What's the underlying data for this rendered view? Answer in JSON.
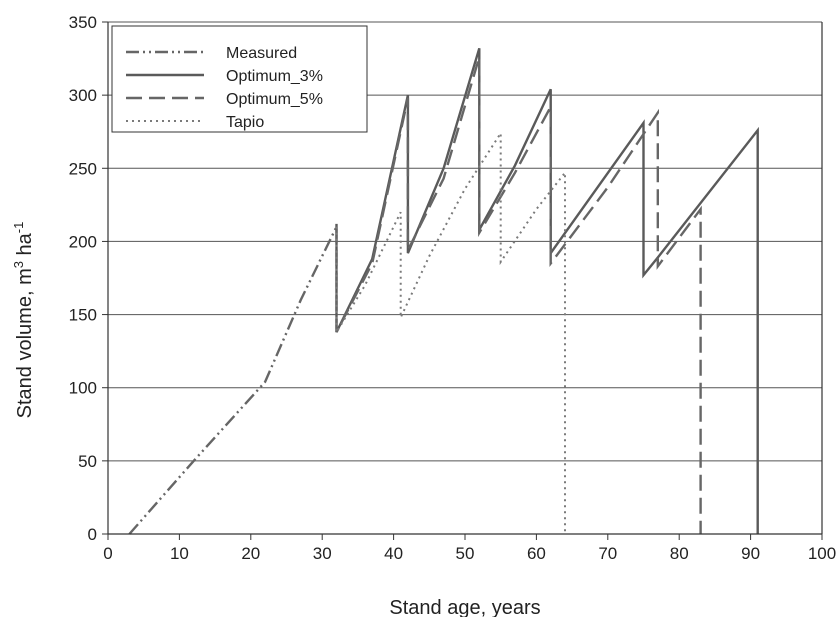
{
  "chart_data": {
    "type": "line",
    "title": "",
    "xlabel": "Stand age, years",
    "ylabel": {
      "prefix": "Stand volume, m",
      "sup1": "3",
      "mid": " ha",
      "sup2": "-1"
    },
    "xlim": [
      0,
      100
    ],
    "ylim": [
      0,
      350
    ],
    "xticks": [
      0,
      10,
      20,
      30,
      40,
      50,
      60,
      70,
      80,
      90,
      100
    ],
    "yticks": [
      0,
      50,
      100,
      150,
      200,
      250,
      300,
      350
    ],
    "grid": "horizontal",
    "legend_position": "top-left",
    "series": [
      {
        "name": "Measured",
        "line_style": "dash-dot-dot",
        "color": "#666666",
        "x": [
          3,
          12,
          22,
          27,
          32
        ],
        "y": [
          0,
          50,
          104,
          160,
          210
        ]
      },
      {
        "name": "Optimum_3%",
        "line_style": "solid",
        "color": "#5a5a5a",
        "x": [
          32,
          32,
          37,
          42,
          42,
          47,
          52,
          52,
          57,
          62,
          62,
          75,
          75,
          77,
          91,
          91
        ],
        "y": [
          212,
          138,
          188,
          300,
          192,
          250,
          332,
          208,
          252,
          304,
          192,
          281,
          177,
          189,
          276,
          0
        ]
      },
      {
        "name": "Optimum_5%",
        "line_style": "dashed",
        "color": "#666666",
        "x": [
          32,
          32,
          37,
          42,
          42,
          47,
          52,
          52,
          57,
          62,
          62,
          70,
          77,
          77,
          83,
          83
        ],
        "y": [
          210,
          138,
          185,
          298,
          194,
          243,
          326,
          206,
          247,
          292,
          185,
          237,
          288,
          183,
          222,
          0
        ]
      },
      {
        "name": "Tapio",
        "line_style": "dotted",
        "color": "#7a7a7a",
        "x": [
          32,
          32,
          36,
          41,
          41,
          45,
          50,
          55,
          55,
          60,
          64,
          64
        ],
        "y": [
          210,
          138,
          170,
          220,
          148,
          190,
          236,
          274,
          186,
          222,
          247,
          0
        ]
      }
    ]
  }
}
